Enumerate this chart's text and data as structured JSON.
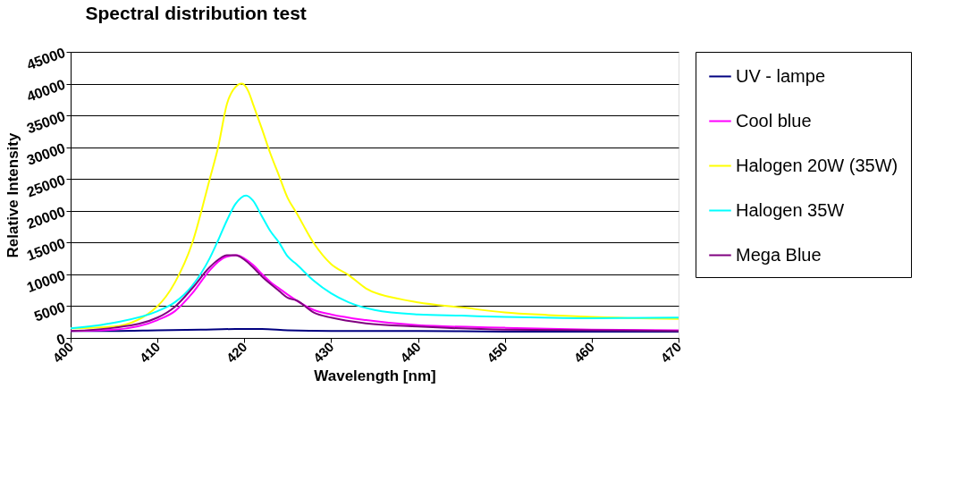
{
  "chart_data": {
    "type": "line",
    "title": "Spectral distribution test",
    "xlabel": "Wavelength [nm]",
    "ylabel": "Relative Intensity",
    "xlim": [
      400,
      470
    ],
    "xticks": [
      400,
      410,
      420,
      430,
      440,
      450,
      460,
      470
    ],
    "ylim": [
      0,
      45000
    ],
    "yticks": [
      0,
      5000,
      10000,
      15000,
      20000,
      25000,
      30000,
      35000,
      40000,
      45000
    ],
    "grid": "y",
    "legend": "right",
    "marker": "none",
    "line_style": "solid",
    "series": [
      {
        "name": "UV - lampe",
        "color": "#000080",
        "x": [
          400,
          405,
          410,
          415,
          419,
          422,
          425,
          430,
          440,
          450,
          460,
          470
        ],
        "values": [
          1100,
          1100,
          1200,
          1300,
          1400,
          1400,
          1200,
          1100,
          1100,
          1000,
          1000,
          1000
        ]
      },
      {
        "name": "Cool blue",
        "color": "#ff00ff",
        "x": [
          400,
          405,
          410,
          412,
          414,
          416,
          417,
          418,
          419.2,
          420,
          421,
          422,
          423,
          424,
          425,
          428,
          430,
          434,
          440,
          450,
          460,
          470
        ],
        "values": [
          1100,
          1300,
          2800,
          4200,
          7000,
          10600,
          12000,
          12800,
          13000,
          12500,
          11500,
          10100,
          8800,
          7800,
          6800,
          4400,
          3700,
          2800,
          2000,
          1600,
          1300,
          1200
        ]
      },
      {
        "name": "Halogen 20W (35W)",
        "color": "#ffff00",
        "x": [
          400,
          405,
          410,
          412,
          414,
          416,
          417,
          418,
          419,
          419.7,
          420.5,
          421,
          422,
          423,
          424,
          425,
          426,
          428,
          430,
          432,
          434,
          438,
          440,
          445,
          450,
          455,
          460,
          470
        ],
        "values": [
          1500,
          1800,
          5000,
          8700,
          14900,
          24900,
          30100,
          36800,
          39500,
          40000,
          38700,
          36800,
          33000,
          29000,
          25500,
          22000,
          19700,
          14900,
          11600,
          9900,
          7800,
          6100,
          5600,
          4800,
          4000,
          3600,
          3300,
          3000
        ]
      },
      {
        "name": "Halogen 35W",
        "color": "#00ffff",
        "x": [
          400,
          405,
          410,
          412,
          414,
          416,
          417,
          418,
          419,
          420.2,
          421,
          422,
          423,
          424,
          425,
          426,
          428,
          430,
          432,
          435,
          440,
          445,
          450,
          460,
          470
        ],
        "values": [
          1500,
          2400,
          4200,
          5600,
          8200,
          12500,
          15400,
          18500,
          21100,
          22400,
          21600,
          19200,
          16800,
          15000,
          12800,
          11600,
          9000,
          7000,
          5600,
          4400,
          3700,
          3500,
          3300,
          3100,
          3200
        ]
      },
      {
        "name": "Mega Blue",
        "color": "#800080",
        "x": [
          400,
          405,
          410,
          412,
          414,
          416,
          417,
          418,
          419,
          420,
          421,
          422,
          423,
          424,
          425,
          426,
          428,
          430,
          434,
          440,
          450,
          460,
          470
        ],
        "values": [
          1100,
          1600,
          3200,
          4900,
          7800,
          11100,
          12300,
          13000,
          13000,
          12300,
          11100,
          9700,
          8500,
          7400,
          6300,
          5900,
          4000,
          3200,
          2300,
          1800,
          1300,
          1200,
          1100
        ]
      }
    ]
  }
}
